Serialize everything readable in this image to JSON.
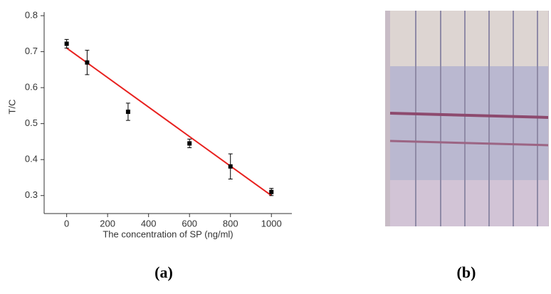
{
  "chart_data": {
    "type": "scatter",
    "x_label": "The concentration of SP (ng/ml)",
    "y_label": "T/C",
    "series": [
      {
        "x": [
          0,
          100,
          300,
          600,
          800,
          1000
        ],
        "values": [
          0.722,
          0.67,
          0.533,
          0.445,
          0.381,
          0.31
        ],
        "errors": [
          0.012,
          0.034,
          0.024,
          0.012,
          0.035,
          0.01
        ],
        "color": "#000000"
      }
    ],
    "fit": {
      "x": [
        0,
        1000
      ],
      "values": [
        0.71,
        0.3
      ],
      "color": "#e8201e"
    },
    "xlim": [
      -110,
      1100
    ],
    "xticks": [
      0,
      200,
      400,
      600,
      800,
      1000
    ],
    "ylim": [
      0.25,
      0.81
    ],
    "yticks": [
      0.3,
      0.4,
      0.5,
      0.6,
      0.7,
      0.8
    ]
  },
  "panel_labels": [
    "(a)",
    "(b)"
  ]
}
